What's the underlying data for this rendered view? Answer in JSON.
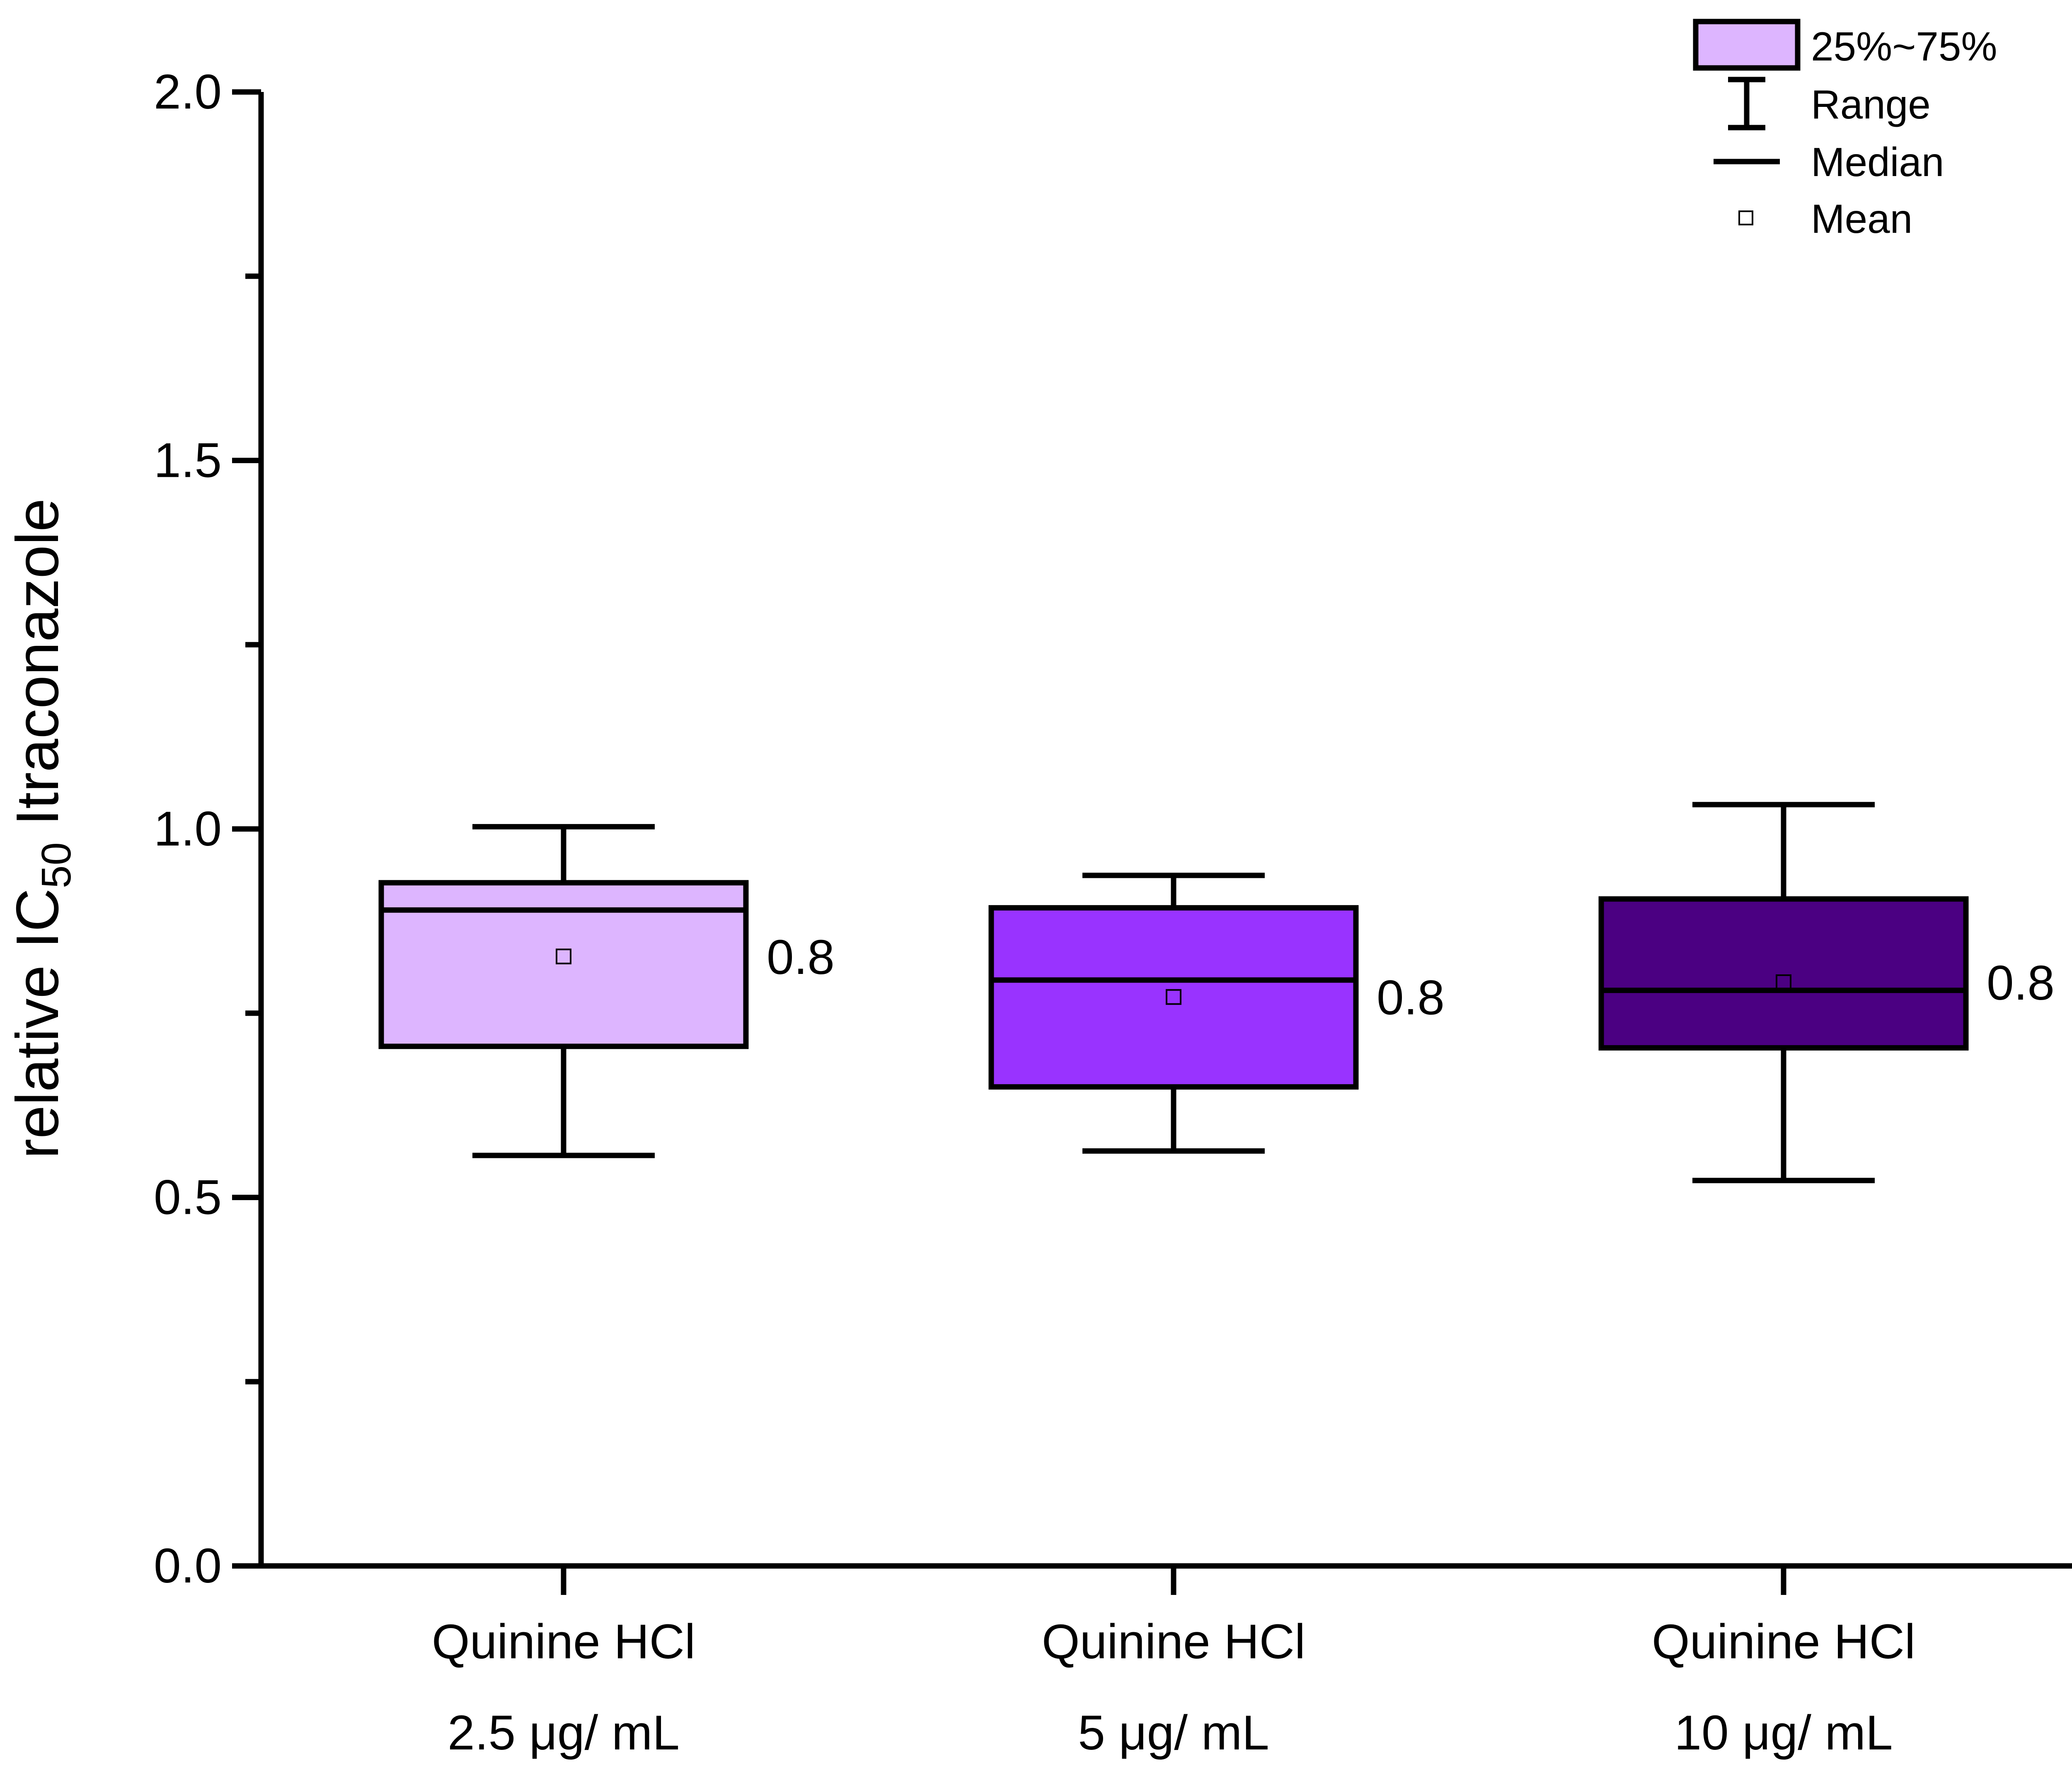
{
  "chart_data": {
    "type": "boxplot",
    "ylabel_main": "relative IC",
    "ylabel_sub": "50",
    "ylabel_rest": " Itraconazole",
    "ylim": [
      0.0,
      2.0
    ],
    "yticks": [
      0.0,
      0.5,
      1.0,
      1.5,
      2.0
    ],
    "ytick_labels": [
      "0.0",
      "0.5",
      "1.0",
      "1.5",
      "2.0"
    ],
    "categories": [
      {
        "line1": "Quinine HCl",
        "line2": "2.5 μg/ mL"
      },
      {
        "line1": "Quinine HCl",
        "line2": "5 μg/ mL"
      },
      {
        "line1": "Quinine HCl",
        "line2": "10 μg/ mL"
      }
    ],
    "boxes": [
      {
        "min": 0.557,
        "q1": 0.705,
        "median": 0.89,
        "q3": 0.927,
        "max": 1.003,
        "mean": 0.827,
        "label": "0.8",
        "color": "#DDB5FF"
      },
      {
        "min": 0.563,
        "q1": 0.65,
        "median": 0.795,
        "q3": 0.893,
        "max": 0.937,
        "mean": 0.772,
        "label": "0.8",
        "color": "#9933FF"
      },
      {
        "min": 0.523,
        "q1": 0.703,
        "median": 0.781,
        "q3": 0.905,
        "max": 1.033,
        "mean": 0.792,
        "label": "0.8",
        "color": "#4B0082"
      }
    ],
    "legend": {
      "position": "top-right",
      "items": [
        {
          "symbol": "box",
          "label": "25%~75%"
        },
        {
          "symbol": "range",
          "label": "Range"
        },
        {
          "symbol": "median",
          "label": "Median"
        },
        {
          "symbol": "mean",
          "label": "Mean"
        }
      ]
    }
  }
}
